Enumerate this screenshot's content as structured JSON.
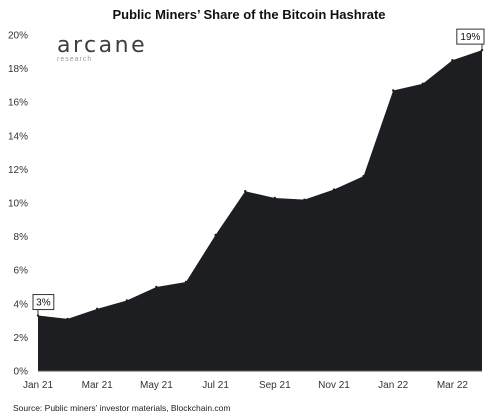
{
  "chart_data": {
    "type": "area",
    "title": "Public Miners’ Share of the Bitcoin Hashrate",
    "source": "Source: Public miners’ investor materials, Blockchain.com",
    "brand": {
      "name": "arcane",
      "subtitle": "research"
    },
    "x": [
      "2021-01",
      "2021-02",
      "2021-03",
      "2021-04",
      "2021-05",
      "2021-06",
      "2021-07",
      "2021-08",
      "2021-09",
      "2021-10",
      "2021-11",
      "2021-12",
      "2022-01",
      "2022-02",
      "2022-03",
      "2022-04"
    ],
    "x_tick_labels": [
      "Jan 21",
      "Mar 21",
      "May 21",
      "Jul 21",
      "Sep 21",
      "Nov 21",
      "Jan 22",
      "Mar 22"
    ],
    "values": [
      3.3,
      3.1,
      3.7,
      4.2,
      5.0,
      5.3,
      8.1,
      10.7,
      10.3,
      10.2,
      10.8,
      11.6,
      16.7,
      17.1,
      18.5,
      19.1
    ],
    "y_tick_labels": [
      "0%",
      "2%",
      "4%",
      "6%",
      "8%",
      "10%",
      "12%",
      "14%",
      "16%",
      "18%",
      "20%"
    ],
    "ylim": [
      0,
      20
    ],
    "series_color": "#1d1e22",
    "callouts": [
      {
        "label": "3%",
        "index": 0
      },
      {
        "label": "19%",
        "index": 15
      }
    ],
    "grid": false,
    "legend": "none"
  }
}
